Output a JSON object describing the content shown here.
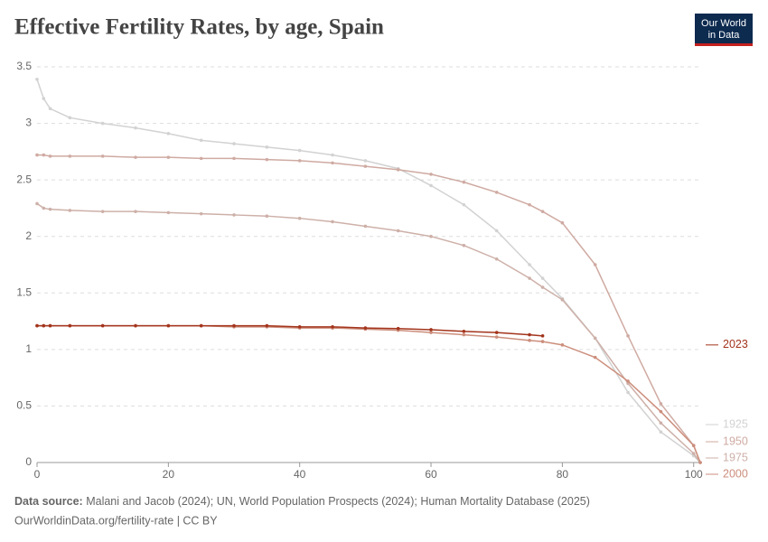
{
  "chart_data": {
    "type": "line",
    "title": "Effective Fertility Rates, by age, Spain",
    "source_label": "Data source:",
    "source_text": "Malani and Jacob (2024); UN, World Population Prospects (2024); Human Mortality Database (2025)",
    "url_line": "OurWorldinData.org/fertility-rate | CC BY",
    "logo": [
      "Our World",
      "in Data"
    ],
    "x": [
      0,
      1,
      2,
      5,
      10,
      15,
      20,
      25,
      30,
      35,
      40,
      45,
      50,
      55,
      60,
      65,
      70,
      75,
      77,
      80,
      85,
      90,
      95,
      100,
      101
    ],
    "xlim": [
      0,
      101
    ],
    "xticks": [
      0,
      20,
      40,
      60,
      80,
      100
    ],
    "ylim": [
      0,
      3.5
    ],
    "yticks": [
      0,
      0.5,
      1,
      1.5,
      2,
      2.5,
      3,
      3.5
    ],
    "grid": true,
    "series": [
      {
        "name": "1925",
        "color": "#d2d2d2",
        "values": [
          3.39,
          3.22,
          3.13,
          3.05,
          3.0,
          2.96,
          2.91,
          2.85,
          2.82,
          2.79,
          2.76,
          2.72,
          2.67,
          2.6,
          2.45,
          2.28,
          2.05,
          1.75,
          1.63,
          1.45,
          1.1,
          0.62,
          0.27,
          0.06,
          0
        ]
      },
      {
        "name": "1950",
        "color": "#cfaaa2",
        "values": [
          2.72,
          2.72,
          2.71,
          2.71,
          2.71,
          2.7,
          2.7,
          2.69,
          2.69,
          2.68,
          2.67,
          2.65,
          2.62,
          2.59,
          2.55,
          2.48,
          2.39,
          2.28,
          2.22,
          2.12,
          1.75,
          1.12,
          0.52,
          0.15,
          0
        ]
      },
      {
        "name": "1975",
        "color": "#cdb0a8",
        "values": [
          2.29,
          2.25,
          2.24,
          2.23,
          2.22,
          2.22,
          2.21,
          2.2,
          2.19,
          2.18,
          2.16,
          2.13,
          2.09,
          2.05,
          2.0,
          1.92,
          1.8,
          1.63,
          1.55,
          1.44,
          1.1,
          0.7,
          0.35,
          0.08,
          0
        ]
      },
      {
        "name": "2000",
        "color": "#cc8e7c",
        "values": [
          1.21,
          1.21,
          1.21,
          1.21,
          1.21,
          1.21,
          1.21,
          1.21,
          1.2,
          1.2,
          1.19,
          1.19,
          1.18,
          1.17,
          1.15,
          1.13,
          1.11,
          1.08,
          1.07,
          1.04,
          0.93,
          0.72,
          0.45,
          0.15,
          0
        ]
      },
      {
        "name": "2023",
        "color": "#a3341c",
        "values": [
          1.21,
          1.21,
          1.21,
          1.21,
          1.21,
          1.21,
          1.21,
          1.21,
          1.21,
          1.21,
          1.2,
          1.2,
          1.19,
          1.185,
          1.175,
          1.16,
          1.15,
          1.13,
          1.12,
          null,
          null,
          null,
          null,
          null,
          null
        ]
      }
    ]
  }
}
